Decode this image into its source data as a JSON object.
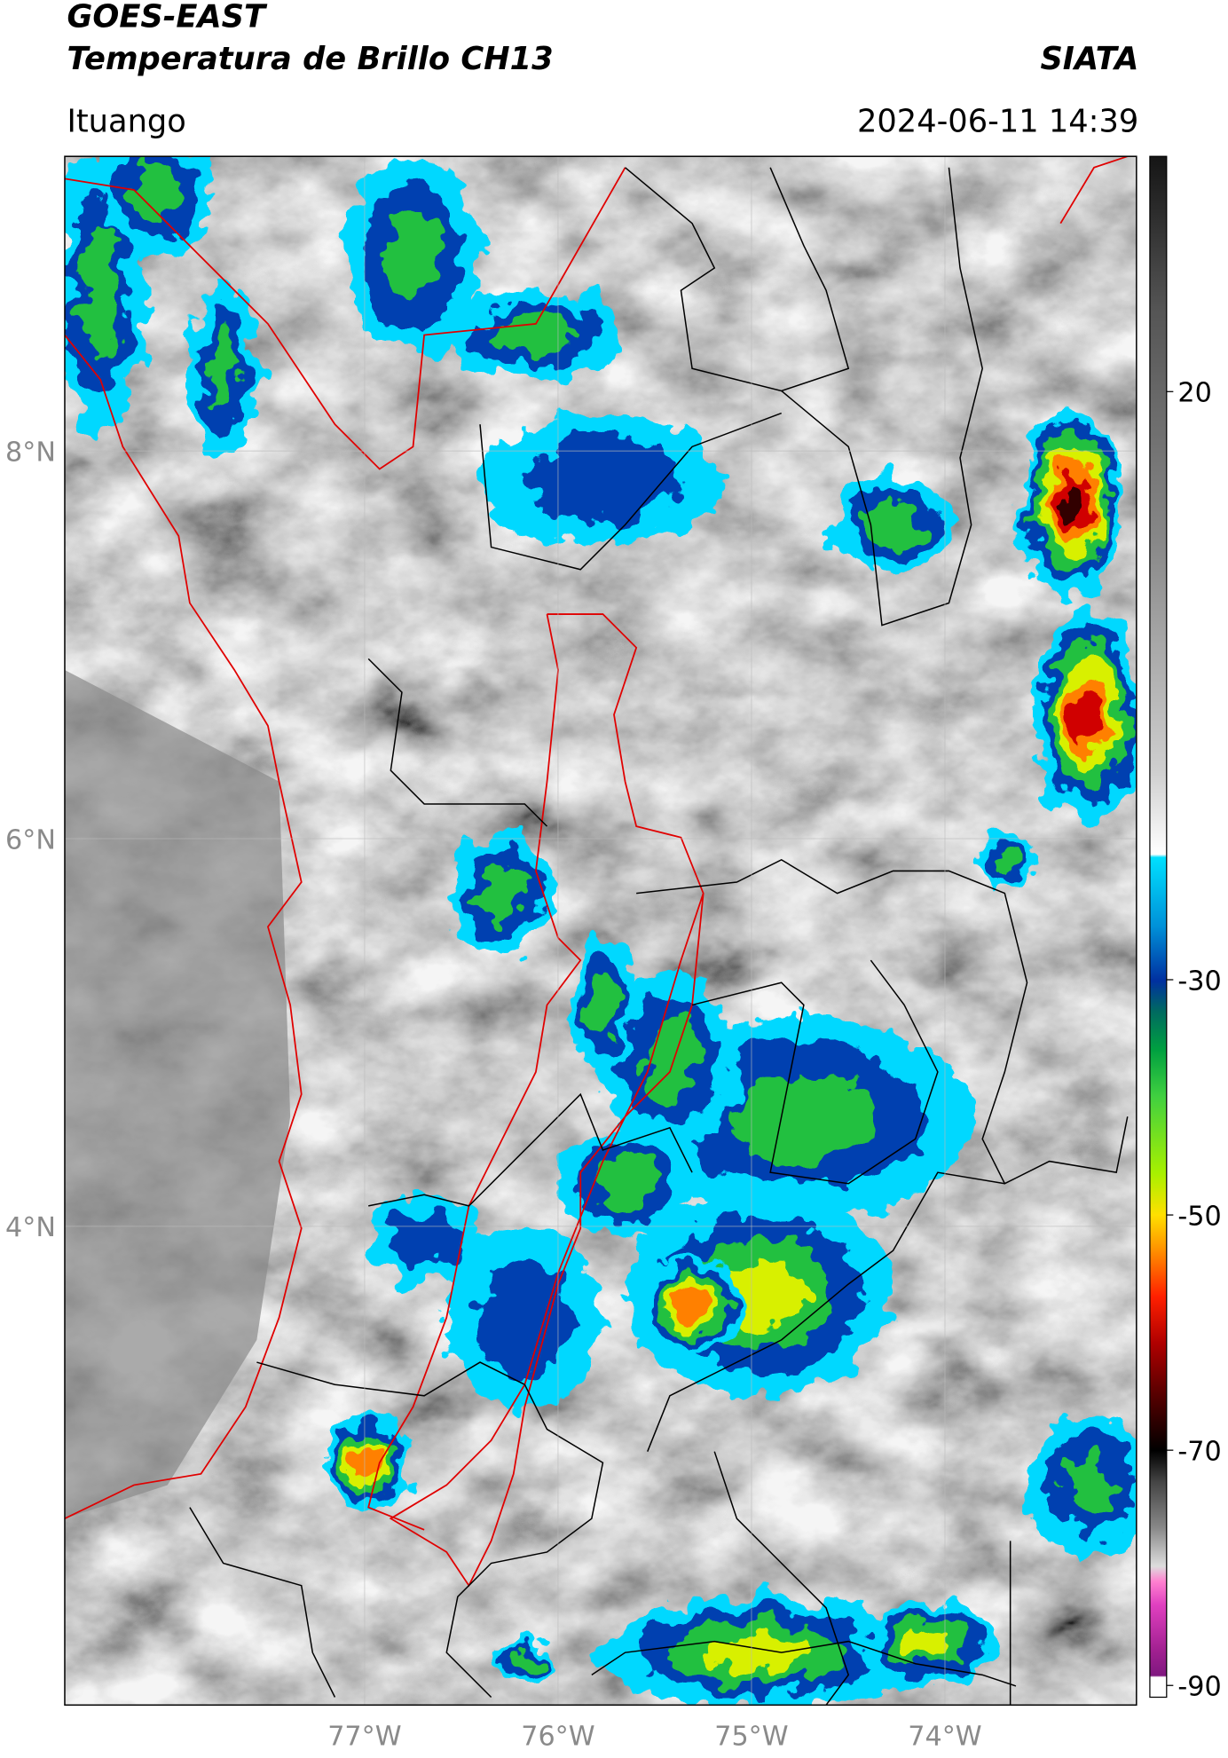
{
  "header": {
    "title": "GOES-EAST",
    "subtitle": "Temperatura de Brillo CH13",
    "credit": "SIATA",
    "location": "Ituango",
    "timestamp": "2024-06-11 14:39"
  },
  "map": {
    "xlim": [
      -78.55,
      -73.01
    ],
    "ylim": [
      1.53,
      9.52
    ],
    "xticks": [
      {
        "value": -77,
        "label": "77°W"
      },
      {
        "value": -76,
        "label": "76°W"
      },
      {
        "value": -75,
        "label": "75°W"
      },
      {
        "value": -74,
        "label": "74°W"
      }
    ],
    "yticks": [
      {
        "value": 8,
        "label": "8°N"
      },
      {
        "value": 6,
        "label": "6°N"
      },
      {
        "value": 4,
        "label": "4°N"
      }
    ],
    "grid": true
  },
  "colorbar": {
    "clim": [
      -91,
      40
    ],
    "ticks": [
      20,
      -30,
      -50,
      -70,
      -90
    ]
  }
}
